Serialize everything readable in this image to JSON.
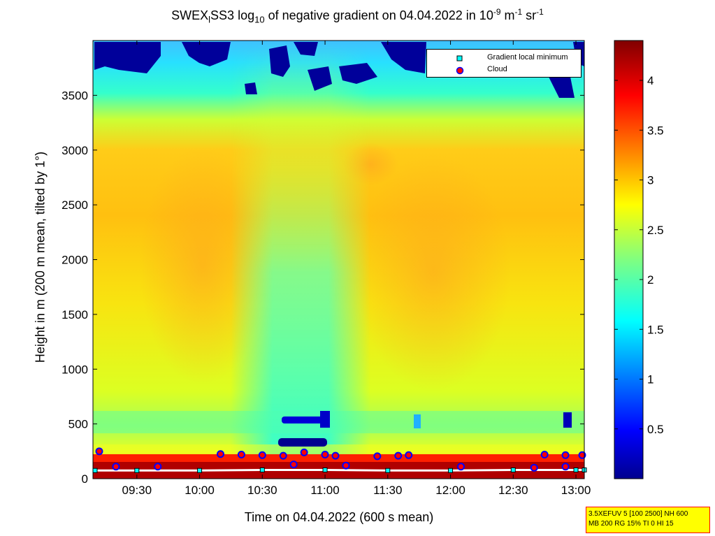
{
  "title": {
    "prefix": "SWEX",
    "sub1": "l",
    "middle": "SS3 log",
    "sub2": "10",
    "rest": " of negative gradient on 04.04.2022 in 10",
    "sup1": "-9",
    "unit1": " m",
    "sup2": "-1",
    "unit2": " sr",
    "sup3": "-1"
  },
  "settings": {
    "line1": "3.5XEFUV 5 [100 2500] NH 600",
    "line2": "MB 200 RG 15% TI 0 HI 15"
  },
  "legend": {
    "gradient_label": "Gradient local minimum",
    "cloud_label": "Cloud"
  },
  "colors": {
    "colormap": "jet",
    "gradient_marker": "#00ffff",
    "cloud_marker": "#ff0000",
    "cloud_outline": "#0000ff",
    "settings_bg": "#ffff00",
    "settings_border": "#ff0000"
  },
  "chart_data": {
    "type": "heatmap",
    "xlabel": "Time on 04.04.2022 (600 s mean)",
    "ylabel": "Height in m (200 m mean, tilted by 1°)",
    "x_range": [
      "09:09",
      "13:04"
    ],
    "x_ticks": [
      "09:30",
      "10:00",
      "10:30",
      "11:00",
      "11:30",
      "12:00",
      "12:30",
      "13:00"
    ],
    "ylim": [
      0,
      4000
    ],
    "y_ticks": [
      0,
      500,
      1000,
      1500,
      2000,
      2500,
      3000,
      3500
    ],
    "colorbar": {
      "min": 0,
      "max": 4.4,
      "ticks": [
        0.5,
        1,
        1.5,
        2,
        2.5,
        3,
        3.5,
        4
      ]
    },
    "description_values": {
      "background_level": 2.6,
      "mid_layer_max": 3.0,
      "low_minimum_band_start": "10:25",
      "low_minimum_band_end": "11:05",
      "low_minimum_value": 1.6,
      "surface_layer_value": 4.4
    },
    "series": [
      {
        "name": "Cloud",
        "points": [
          {
            "t": "09:12",
            "h": 250
          },
          {
            "t": "10:10",
            "h": 225
          },
          {
            "t": "10:20",
            "h": 220
          },
          {
            "t": "10:30",
            "h": 215
          },
          {
            "t": "10:40",
            "h": 210
          },
          {
            "t": "10:50",
            "h": 240
          },
          {
            "t": "11:00",
            "h": 220
          },
          {
            "t": "11:05",
            "h": 210
          },
          {
            "t": "11:25",
            "h": 205
          },
          {
            "t": "11:35",
            "h": 210
          },
          {
            "t": "11:40",
            "h": 215
          },
          {
            "t": "12:45",
            "h": 220
          },
          {
            "t": "12:55",
            "h": 215
          },
          {
            "t": "13:03",
            "h": 215
          },
          {
            "t": "09:20",
            "h": 110
          },
          {
            "t": "09:40",
            "h": 110
          },
          {
            "t": "10:45",
            "h": 130
          },
          {
            "t": "11:10",
            "h": 120
          },
          {
            "t": "12:05",
            "h": 110
          },
          {
            "t": "12:40",
            "h": 100
          },
          {
            "t": "12:55",
            "h": 110
          }
        ]
      },
      {
        "name": "Gradient local minimum",
        "points": [
          {
            "t": "09:10",
            "h": 75
          },
          {
            "t": "09:30",
            "h": 75
          },
          {
            "t": "10:00",
            "h": 75
          },
          {
            "t": "10:30",
            "h": 80
          },
          {
            "t": "11:00",
            "h": 80
          },
          {
            "t": "11:30",
            "h": 75
          },
          {
            "t": "12:00",
            "h": 75
          },
          {
            "t": "12:30",
            "h": 80
          },
          {
            "t": "13:00",
            "h": 80
          },
          {
            "t": "13:04",
            "h": 80
          }
        ]
      }
    ]
  }
}
